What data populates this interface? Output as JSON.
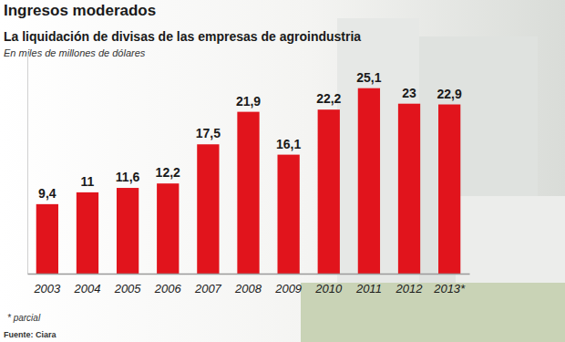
{
  "chart_data": {
    "type": "bar",
    "title": "Ingresos moderados",
    "subtitle": "La liquidación de divisas de las empresas de agroindustria",
    "y_label": "En miles de millones de dólares",
    "categories": [
      "2003",
      "2004",
      "2005",
      "2006",
      "2007",
      "2008",
      "2009",
      "2010",
      "2011",
      "2012",
      "2013*"
    ],
    "values": [
      9.4,
      11,
      11.6,
      12.2,
      17.5,
      21.9,
      16.1,
      22.2,
      25.1,
      23,
      22.9
    ],
    "value_labels": [
      "9,4",
      "11",
      "11,6",
      "12,2",
      "17,5",
      "21,9",
      "16,1",
      "22,2",
      "25,1",
      "23",
      "22,9"
    ],
    "color": "#e1141c",
    "ylim": [
      0,
      30
    ],
    "yticks": [],
    "grid": false,
    "data_labels": true,
    "tick_labels": "x",
    "note": "* parcial",
    "source": "Fuente: Ciara"
  }
}
